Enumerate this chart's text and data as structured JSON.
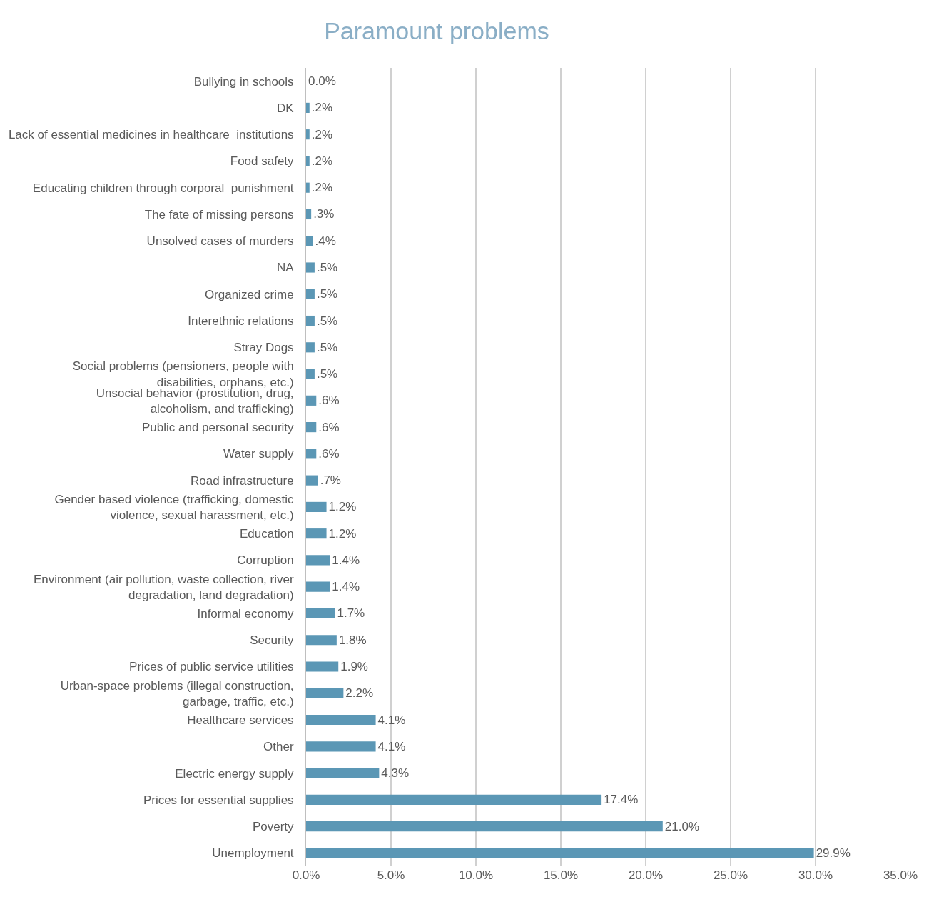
{
  "chart_data": {
    "type": "bar",
    "orientation": "horizontal",
    "title": "Paramount problems",
    "categories": [
      "Bullying in schools",
      "DK",
      "Lack of essential medicines in healthcare  institutions",
      "Food safety",
      "Educating children through corporal  punishment",
      "The fate of missing persons",
      "Unsolved cases of murders",
      "NA",
      "Organized crime",
      "Interethnic relations",
      "Stray Dogs",
      "Social problems (pensioners, people with\ndisabilities, orphans, etc.)",
      "Unsocial behavior (prostitution, drug,\nalcoholism, and trafficking)",
      "Public and personal security",
      "Water supply",
      "Road infrastructure",
      "Gender based violence (trafficking, domestic\nviolence, sexual harassment, etc.)",
      "Education",
      "Corruption",
      "Environment (air pollution, waste collection, river\ndegradation, land degradation)",
      "Informal economy",
      "Security",
      "Prices of public service utilities",
      "Urban-space problems (illegal construction,\ngarbage, traffic, etc.)",
      "Healthcare services",
      "Other",
      "Electric energy supply",
      "Prices for essential supplies",
      "Poverty",
      "Unemployment"
    ],
    "values": [
      0.0,
      0.2,
      0.2,
      0.2,
      0.2,
      0.3,
      0.4,
      0.5,
      0.5,
      0.5,
      0.5,
      0.5,
      0.6,
      0.6,
      0.6,
      0.7,
      1.2,
      1.2,
      1.4,
      1.4,
      1.7,
      1.8,
      1.9,
      2.2,
      4.1,
      4.1,
      4.3,
      17.4,
      21.0,
      29.9
    ],
    "value_labels": [
      "0.0%",
      ".2%",
      ".2%",
      ".2%",
      ".2%",
      ".3%",
      ".4%",
      ".5%",
      ".5%",
      ".5%",
      ".5%",
      ".5%",
      ".6%",
      ".6%",
      ".6%",
      ".7%",
      "1.2%",
      "1.2%",
      "1.4%",
      "1.4%",
      "1.7%",
      "1.8%",
      "1.9%",
      "2.2%",
      "4.1%",
      "4.1%",
      "4.3%",
      "17.4%",
      "21.0%",
      "29.9%"
    ],
    "color": "#5b97b5",
    "xlim": [
      0,
      35
    ],
    "xticks": [
      {
        "value": 0,
        "label": "0.0%"
      },
      {
        "value": 5,
        "label": "5.0%"
      },
      {
        "value": 10,
        "label": "10.0%"
      },
      {
        "value": 15,
        "label": "15.0%"
      },
      {
        "value": 20,
        "label": "20.0%"
      },
      {
        "value": 25,
        "label": "25.0%"
      },
      {
        "value": 30,
        "label": "30.0%"
      },
      {
        "value": 35,
        "label": "35.0%"
      }
    ],
    "grid": "x",
    "legend": false
  }
}
